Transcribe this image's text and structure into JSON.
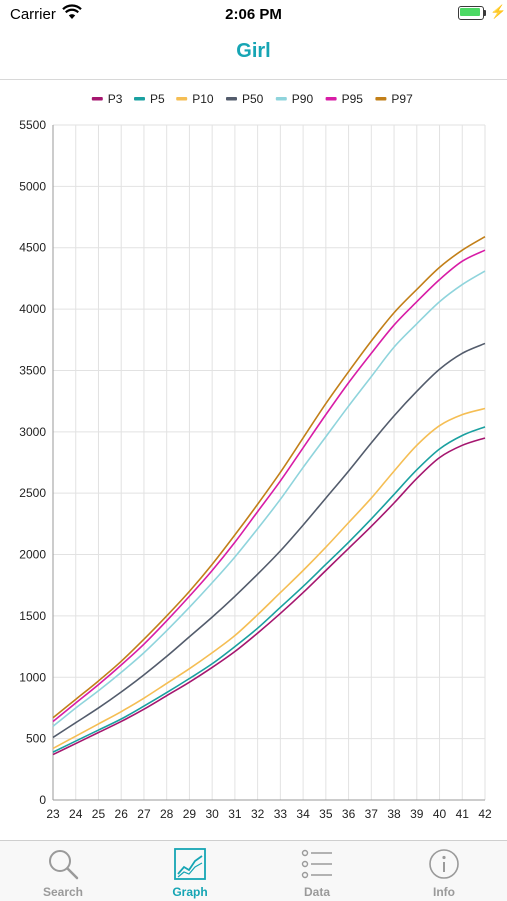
{
  "status_bar": {
    "carrier": "Carrier",
    "time": "2:06 PM"
  },
  "nav": {
    "title": "Girl"
  },
  "tabs": [
    {
      "label": "Search",
      "icon": "search-icon",
      "active": false
    },
    {
      "label": "Graph",
      "icon": "graph-icon",
      "active": true
    },
    {
      "label": "Data",
      "icon": "list-icon",
      "active": false
    },
    {
      "label": "Info",
      "icon": "info-icon",
      "active": false
    }
  ],
  "colors": {
    "accent": "#16a5b4",
    "tab_inactive": "#9a9a9a"
  },
  "chart_data": {
    "type": "line",
    "grid": true,
    "legend_position": "top-center",
    "x": [
      23,
      24,
      25,
      26,
      27,
      28,
      29,
      30,
      31,
      32,
      33,
      34,
      35,
      36,
      37,
      38,
      39,
      40,
      41,
      42
    ],
    "xlim": [
      23,
      42
    ],
    "ylim": [
      0,
      5500
    ],
    "y_ticks": [
      0,
      500,
      1000,
      1500,
      2000,
      2500,
      3000,
      3500,
      4000,
      4500,
      5000,
      5500
    ],
    "series": [
      {
        "name": "P3",
        "color": "#a5166f",
        "values": [
          370,
          460,
          550,
          640,
          740,
          850,
          960,
          1080,
          1210,
          1360,
          1520,
          1690,
          1870,
          2050,
          2230,
          2420,
          2620,
          2790,
          2890,
          2950
        ]
      },
      {
        "name": "P5",
        "color": "#1aa0a0",
        "values": [
          390,
          480,
          570,
          660,
          765,
          875,
          990,
          1110,
          1250,
          1400,
          1570,
          1740,
          1920,
          2100,
          2290,
          2490,
          2690,
          2860,
          2970,
          3040
        ]
      },
      {
        "name": "P10",
        "color": "#f5be54",
        "values": [
          420,
          520,
          620,
          720,
          830,
          950,
          1070,
          1200,
          1340,
          1510,
          1690,
          1870,
          2060,
          2260,
          2460,
          2680,
          2890,
          3050,
          3140,
          3190
        ]
      },
      {
        "name": "P50",
        "color": "#535c6c",
        "values": [
          510,
          630,
          750,
          880,
          1020,
          1170,
          1330,
          1490,
          1660,
          1840,
          2030,
          2240,
          2460,
          2680,
          2910,
          3130,
          3330,
          3510,
          3640,
          3720
        ]
      },
      {
        "name": "P90",
        "color": "#8fd4dc",
        "values": [
          600,
          750,
          890,
          1040,
          1200,
          1380,
          1570,
          1770,
          1980,
          2210,
          2450,
          2710,
          2960,
          3210,
          3450,
          3690,
          3880,
          4060,
          4200,
          4310
        ]
      },
      {
        "name": "P95",
        "color": "#d81ca6",
        "values": [
          640,
          790,
          940,
          1100,
          1270,
          1460,
          1660,
          1870,
          2100,
          2350,
          2600,
          2870,
          3140,
          3400,
          3640,
          3870,
          4060,
          4240,
          4390,
          4480
        ]
      },
      {
        "name": "P97",
        "color": "#c27f18",
        "values": [
          670,
          820,
          970,
          1130,
          1310,
          1500,
          1700,
          1920,
          2160,
          2410,
          2670,
          2950,
          3230,
          3490,
          3740,
          3970,
          4160,
          4340,
          4480,
          4590
        ]
      }
    ]
  }
}
